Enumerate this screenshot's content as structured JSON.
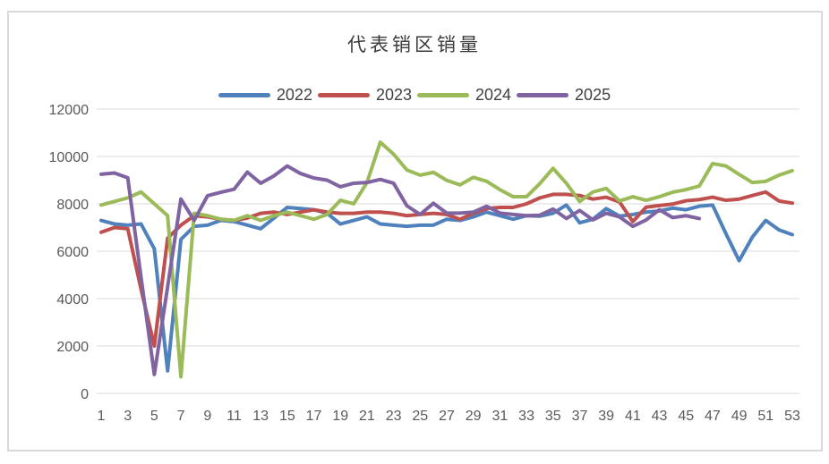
{
  "chart_data": {
    "type": "line",
    "title": "代表销区销量",
    "xlabel": "",
    "ylabel": "",
    "x": [
      1,
      2,
      3,
      4,
      5,
      6,
      7,
      8,
      9,
      10,
      11,
      12,
      13,
      14,
      15,
      16,
      17,
      18,
      19,
      20,
      21,
      22,
      23,
      24,
      25,
      26,
      27,
      28,
      29,
      30,
      31,
      32,
      33,
      34,
      35,
      36,
      37,
      38,
      39,
      40,
      41,
      42,
      43,
      44,
      45,
      46,
      47,
      48,
      49,
      50,
      51,
      52,
      53
    ],
    "x_tick_labels": [
      1,
      3,
      5,
      7,
      9,
      11,
      13,
      15,
      17,
      19,
      21,
      23,
      25,
      27,
      29,
      31,
      33,
      35,
      37,
      39,
      41,
      43,
      45,
      47,
      49,
      51,
      53
    ],
    "ylim": [
      0,
      12000
    ],
    "y_tick_step": 2000,
    "y_tick_labels": [
      "0",
      "2000",
      "4000",
      "6000",
      "8000",
      "10000",
      "12000"
    ],
    "grid": "horizontal",
    "legend_position": "top",
    "grid_color": "#d9d9d9",
    "axis_text_color": "#595959",
    "title_color": "#3b3b3b",
    "legend_text_color": "#404040",
    "series": [
      {
        "name": "2022",
        "color": "#4F81BD",
        "values": [
          7300,
          7150,
          7100,
          7150,
          6100,
          950,
          6500,
          7050,
          7100,
          7300,
          7250,
          7100,
          6950,
          7400,
          7850,
          7800,
          7750,
          7600,
          7150,
          7300,
          7450,
          7150,
          7100,
          7050,
          7100,
          7100,
          7350,
          7300,
          7450,
          7650,
          7500,
          7350,
          7500,
          7480,
          7600,
          7950,
          7200,
          7350,
          7800,
          7480,
          7550,
          7650,
          7700,
          7820,
          7750,
          7900,
          7950,
          6750,
          5600,
          6600,
          7300,
          6900,
          6700
        ]
      },
      {
        "name": "2023",
        "color": "#C0504D",
        "values": [
          6800,
          7000,
          6950,
          4400,
          2000,
          6550,
          7100,
          7500,
          7450,
          7350,
          7300,
          7400,
          7600,
          7650,
          7550,
          7650,
          7750,
          7650,
          7600,
          7600,
          7650,
          7650,
          7600,
          7500,
          7550,
          7600,
          7550,
          7350,
          7600,
          7800,
          7850,
          7850,
          8000,
          8250,
          8400,
          8400,
          8350,
          8200,
          8280,
          8080,
          7250,
          7860,
          7930,
          7990,
          8130,
          8180,
          8280,
          8150,
          8200,
          8350,
          8500,
          8120,
          8030
        ]
      },
      {
        "name": "2024",
        "color": "#9BBB59",
        "values": [
          7950,
          8100,
          8250,
          8500,
          8000,
          7500,
          700,
          7600,
          7500,
          7350,
          7300,
          7500,
          7300,
          7500,
          7650,
          7500,
          7350,
          7550,
          8150,
          8000,
          8900,
          10600,
          10100,
          9430,
          9210,
          9330,
          8990,
          8800,
          9120,
          8950,
          8600,
          8300,
          8300,
          8850,
          9500,
          8870,
          8100,
          8500,
          8650,
          8120,
          8300,
          8150,
          8300,
          8490,
          8600,
          8750,
          9700,
          9600,
          9245,
          8900,
          8950,
          9210,
          9400
        ]
      },
      {
        "name": "2025",
        "color": "#8064A2",
        "values": [
          9250,
          9300,
          9100,
          4900,
          800,
          4500,
          8200,
          7300,
          8340,
          8490,
          8615,
          9340,
          8870,
          9180,
          9600,
          9280,
          9090,
          9000,
          8720,
          8870,
          8900,
          9030,
          8870,
          7920,
          7550,
          8025,
          7610,
          7610,
          7650,
          7900,
          7610,
          7550,
          7500,
          7520,
          7780,
          7380,
          7720,
          7320,
          7600,
          7450,
          7050,
          7320,
          7750,
          7420,
          7500,
          7380,
          null,
          null,
          null,
          null,
          null,
          null,
          null
        ]
      }
    ]
  }
}
